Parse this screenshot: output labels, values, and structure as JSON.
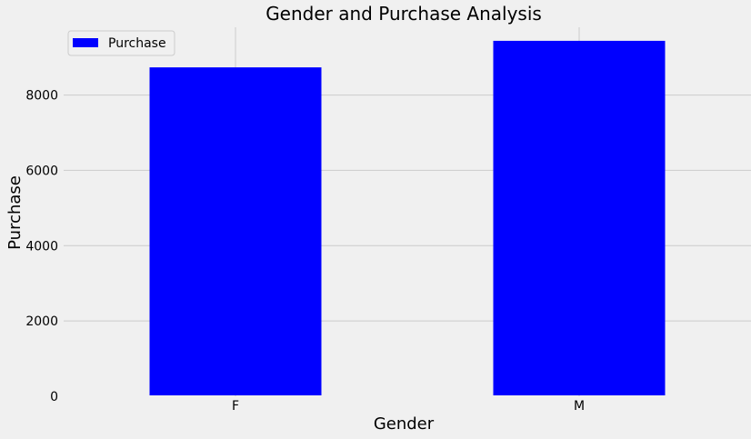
{
  "chart_data": {
    "type": "bar",
    "title": "Gender and Purchase Analysis",
    "xlabel": "Gender",
    "ylabel": "Purchase",
    "categories": [
      "F",
      "M"
    ],
    "series": [
      {
        "name": "Purchase",
        "values": [
          8735,
          9440
        ]
      }
    ],
    "ylim": [
      0,
      9800
    ],
    "yticks": [
      0,
      2000,
      4000,
      6000,
      8000
    ],
    "ytick_labels": [
      "0",
      "2000",
      "4000",
      "6000",
      "8000"
    ],
    "grid": true,
    "legend_position": "top-left",
    "colors": {
      "bar": "#0000ff",
      "background": "#f0f0f0",
      "grid": "#cbcbcb"
    }
  }
}
